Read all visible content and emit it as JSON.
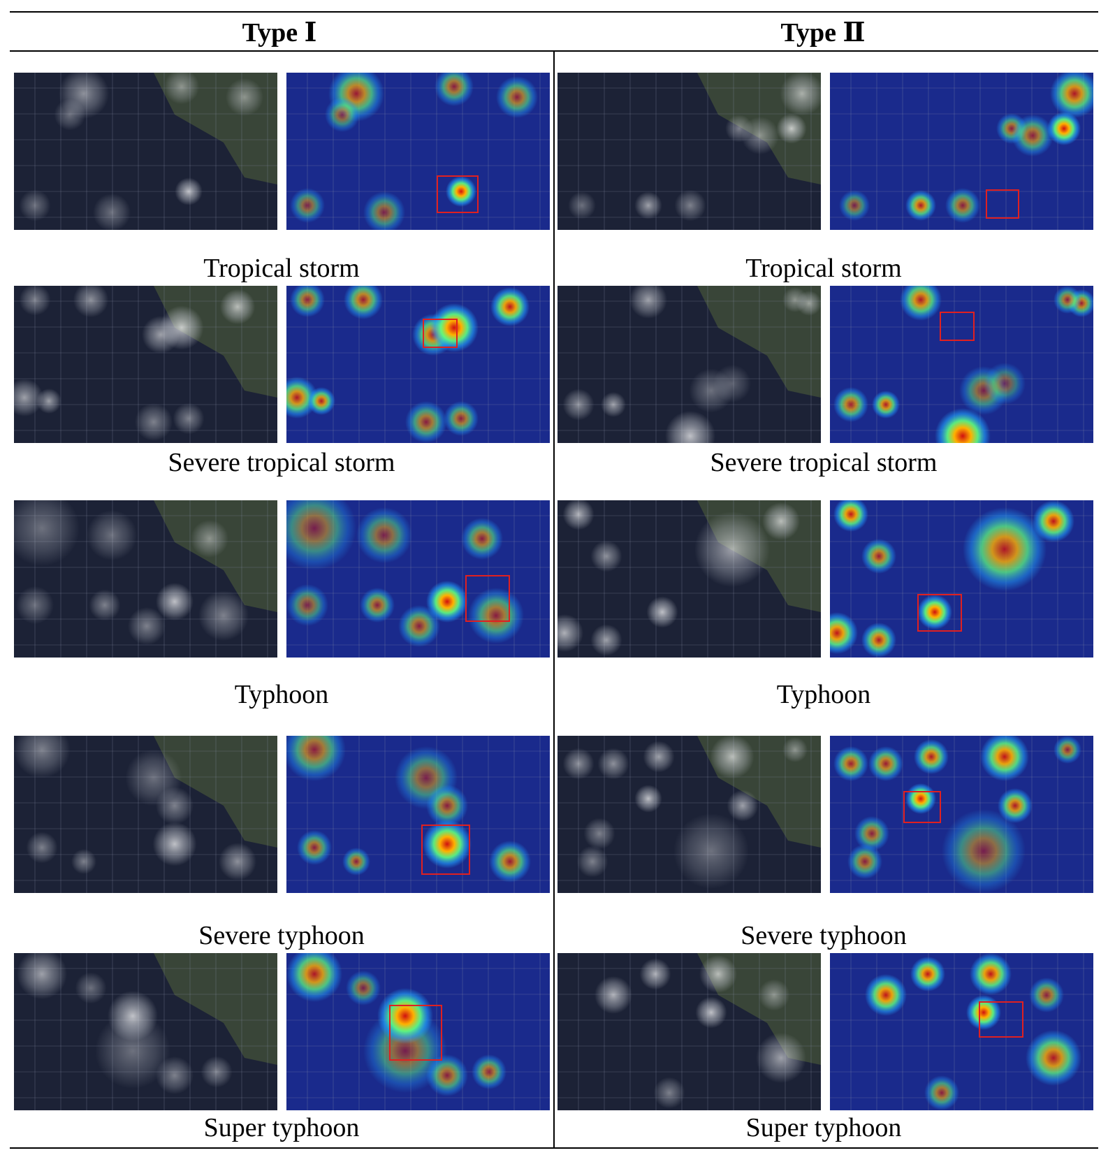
{
  "columns": [
    {
      "title": "Type Ⅰ"
    },
    {
      "title": "Type Ⅱ"
    }
  ],
  "rows": [
    {
      "caption_left": "Tropical storm",
      "caption_right": "Tropical storm"
    },
    {
      "caption_left": "Severe tropical storm",
      "caption_right": "Severe tropical storm"
    },
    {
      "caption_left": "Typhoon",
      "caption_right": "Typhoon"
    },
    {
      "caption_left": "Severe typhoon",
      "caption_right": "Severe typhoon"
    },
    {
      "caption_left": "Super typhoon",
      "caption_right": "Super typhoon"
    }
  ],
  "colors": {
    "heatmap_bg": "#1a2a8c",
    "satellite_bg": "#1c2236",
    "detection_box": "#e02020"
  }
}
